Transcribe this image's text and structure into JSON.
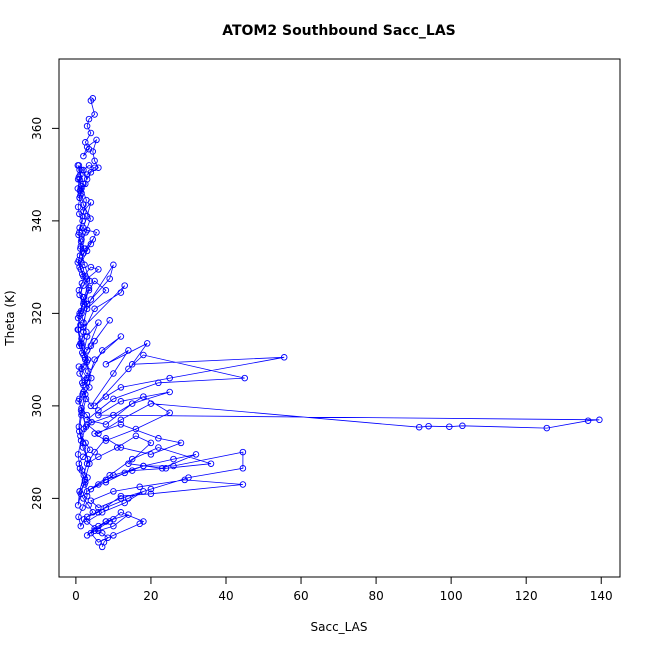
{
  "chart_data": {
    "type": "scatter",
    "title": "ATOM2 Southbound Sacc_LAS",
    "xlabel": "Sacc_LAS",
    "ylabel": "Theta (K)",
    "xlim": [
      -4.5,
      145
    ],
    "ylim": [
      263,
      375
    ],
    "xticks": [
      0,
      20,
      40,
      60,
      80,
      100,
      120,
      140
    ],
    "yticks": [
      280,
      300,
      320,
      340,
      360
    ],
    "grid": false,
    "legend": "none",
    "marker": "open-circle",
    "connected": true,
    "color": "#0000ff",
    "series": [
      {
        "x": [
          4.5,
          4.0,
          5.0,
          3.5,
          3.0,
          4.0,
          2.5,
          3.5,
          2.0,
          3.0,
          5.5,
          4.5,
          5.0,
          6.0,
          4.0,
          3.0,
          2.0,
          3.5,
          5.0,
          3.0,
          2.5,
          1.5,
          1.0,
          0.5,
          1.0,
          1.5,
          0.8,
          1.2,
          2.0,
          1.0,
          2.0,
          4.0,
          3.0,
          2.0,
          1.5,
          3.0,
          5.5,
          4.0,
          2.0,
          1.5,
          3.0,
          4.5,
          2.5,
          1.0,
          2.0,
          4.0,
          6.0,
          3.0,
          2.0,
          1.0,
          2.0,
          3.5,
          5.0,
          8.0,
          3.0,
          2.0,
          1.5,
          4.0,
          10.0,
          9.0,
          3.0,
          2.0,
          13.0,
          12.0,
          5.0,
          2.0,
          1.5,
          3.0,
          6.0,
          3.0,
          2.0,
          4.0,
          9.0,
          5.0,
          2.5,
          1.5,
          3.0,
          7.0,
          12.0,
          5.0,
          3.0,
          2.0,
          4.0,
          10.0,
          14.0,
          8.0,
          19.0,
          15.0,
          55.5,
          25.0,
          12.0,
          8.0,
          5.0,
          14.0,
          18.0,
          45.0,
          22.0,
          10.0,
          6.0,
          3.0,
          8.0,
          15.0,
          25.0,
          12.0,
          6.0,
          139.5,
          136.5,
          125.5,
          103.0,
          99.5,
          94.0,
          91.5,
          20.0,
          12.0,
          6.0,
          3.0,
          10.0,
          18.0,
          25.0,
          16.0,
          8.0,
          5.0,
          12.0,
          22.0,
          28.0,
          20.0,
          12.0,
          8.0,
          5.0,
          3.0,
          6.0,
          11.0,
          16.0,
          20.0,
          14.0,
          23.0,
          32.0,
          26.0,
          18.0,
          10.0,
          6.0,
          3.0,
          9.0,
          15.0,
          22.0,
          36.0,
          24.0,
          15.0,
          8.0,
          4.0,
          8.0,
          13.0,
          18.0,
          26.0,
          44.5,
          44.5,
          30.0,
          20.0,
          12.0,
          6.0,
          4.0,
          10.0,
          17.0,
          29.0,
          44.5,
          20.0,
          12.0,
          6.0,
          3.0,
          8.0,
          14.0,
          18.0,
          13.0,
          7.0,
          3.0,
          6.0,
          10.0,
          14.0,
          8.0,
          5.0,
          3.0,
          6.0,
          9.0,
          12.0,
          18.0,
          17.0,
          10.0,
          6.0,
          4.0,
          10.0,
          8.0,
          5.0,
          7.0,
          8.5,
          7.5,
          7.0
        ],
        "y": [
          366.5,
          366.0,
          363.0,
          362.0,
          360.5,
          359.0,
          357.0,
          355.5,
          354.0,
          356.0,
          357.5,
          355.0,
          353.0,
          351.5,
          350.5,
          349.0,
          351.0,
          352.0,
          351.5,
          350.0,
          348.0,
          346.0,
          345.0,
          347.0,
          349.0,
          351.0,
          352.0,
          350.0,
          348.0,
          345.0,
          342.0,
          344.0,
          341.0,
          338.5,
          336.0,
          338.0,
          337.5,
          335.0,
          333.0,
          331.0,
          333.5,
          336.0,
          334.0,
          330.0,
          328.0,
          330.0,
          329.5,
          327.5,
          326.0,
          324.0,
          322.0,
          325.0,
          327.0,
          325.0,
          321.0,
          318.0,
          320.0,
          323.0,
          330.5,
          327.5,
          322.0,
          317.0,
          326.0,
          324.5,
          321.0,
          316.0,
          313.5,
          312.0,
          318.0,
          315.0,
          311.0,
          313.0,
          318.5,
          314.0,
          310.0,
          308.0,
          306.0,
          312.0,
          315.0,
          310.0,
          305.0,
          303.0,
          300.0,
          307.0,
          312.0,
          309.0,
          313.5,
          309.0,
          310.5,
          306.0,
          304.0,
          302.0,
          300.0,
          308.0,
          311.0,
          306.0,
          305.0,
          301.5,
          299.0,
          297.0,
          296.0,
          300.5,
          303.0,
          301.0,
          298.0,
          297.0,
          296.8,
          295.2,
          295.7,
          295.5,
          295.6,
          295.4,
          300.5,
          297.0,
          294.0,
          296.0,
          298.0,
          302.0,
          298.5,
          295.0,
          292.5,
          294.0,
          296.0,
          293.0,
          292.0,
          289.5,
          291.0,
          293.0,
          290.0,
          287.5,
          289.0,
          291.0,
          293.5,
          292.0,
          287.5,
          286.5,
          289.5,
          288.5,
          287.0,
          285.0,
          283.0,
          281.5,
          285.0,
          288.5,
          291.0,
          287.5,
          286.5,
          286.0,
          284.0,
          282.0,
          283.5,
          285.5,
          287.0,
          287.0,
          290.0,
          286.5,
          284.5,
          282.0,
          280.0,
          278.0,
          279.5,
          281.5,
          282.5,
          284.0,
          283.0,
          281.0,
          280.5,
          277.0,
          276.0,
          278.0,
          280.0,
          281.5,
          279.0,
          277.0,
          275.0,
          273.0,
          274.0,
          276.5,
          275.0,
          273.5,
          272.0,
          274.0,
          275.0,
          277.0,
          275.0,
          274.5,
          272.0,
          270.5,
          272.5,
          275.5,
          275.0,
          273.0,
          272.5,
          271.5,
          270.5,
          269.5
        ]
      },
      {
        "x": [
          0.5,
          1.0,
          0.8,
          1.5,
          1.2,
          0.6,
          0.9,
          1.8,
          1.0,
          0.7,
          1.4,
          2.2,
          1.1,
          0.5,
          1.3,
          2.5,
          1.6,
          0.8,
          1.9,
          3.0,
          1.4,
          0.6,
          1.2,
          2.8,
          1.5,
          0.9,
          1.7,
          3.2,
          2.0,
          1.0,
          2.4,
          3.6,
          1.8,
          0.7,
          1.5,
          2.9,
          4.2,
          2.1,
          1.2,
          2.6,
          3.8,
          1.9,
          0.8,
          1.6,
          3.1,
          2.3,
          1.0,
          2.0,
          3.4,
          4.5,
          2.2,
          1.3,
          0.7,
          1.8,
          3.0,
          2.5,
          1.1,
          0.6,
          1.4,
          2.7,
          1.6,
          0.9,
          2.0,
          3.3,
          2.4,
          1.2,
          0.5,
          1.0,
          2.1,
          3.5,
          1.7,
          0.8,
          1.3,
          2.6,
          3.9,
          2.0,
          1.1,
          0.6,
          1.5,
          2.8,
          1.8,
          0.9,
          1.2,
          2.3,
          3.7,
          2.2,
          1.0,
          0.7,
          1.6,
          2.9,
          4.1,
          2.5,
          1.4,
          0.8,
          1.9,
          3.2,
          2.1,
          1.0,
          0.6,
          1.3,
          2.4,
          3.6,
          1.9,
          0.9,
          1.5,
          2.7,
          1.7,
          0.8
        ],
        "y": [
          352.0,
          351.0,
          349.5,
          347.0,
          345.5,
          343.0,
          341.5,
          340.0,
          338.5,
          337.0,
          335.5,
          334.0,
          332.5,
          331.0,
          329.5,
          328.0,
          326.5,
          325.0,
          323.5,
          322.0,
          320.5,
          319.0,
          317.5,
          316.0,
          314.5,
          313.0,
          311.5,
          310.0,
          308.5,
          307.0,
          305.5,
          304.0,
          302.5,
          301.0,
          299.5,
          298.0,
          296.5,
          295.0,
          293.5,
          292.0,
          290.5,
          289.0,
          287.5,
          286.0,
          284.5,
          283.0,
          281.5,
          280.0,
          278.5,
          277.0,
          275.5,
          274.0,
          276.0,
          278.0,
          280.5,
          283.5,
          286.5,
          289.5,
          292.5,
          295.5,
          298.5,
          301.5,
          304.5,
          307.5,
          310.5,
          313.5,
          316.5,
          319.5,
          322.5,
          325.5,
          328.5,
          331.5,
          334.5,
          337.5,
          340.5,
          343.5,
          346.5,
          349.0,
          347.5,
          344.5,
          341.0,
          337.5,
          334.0,
          330.5,
          327.0,
          323.5,
          320.0,
          316.5,
          313.0,
          309.5,
          306.0,
          302.5,
          299.0,
          295.5,
          292.0,
          288.5,
          285.0,
          281.5,
          278.5,
          281.0,
          284.0,
          287.5,
          291.0,
          294.5,
          298.0,
          301.5,
          305.0,
          308.5
        ]
      }
    ]
  }
}
